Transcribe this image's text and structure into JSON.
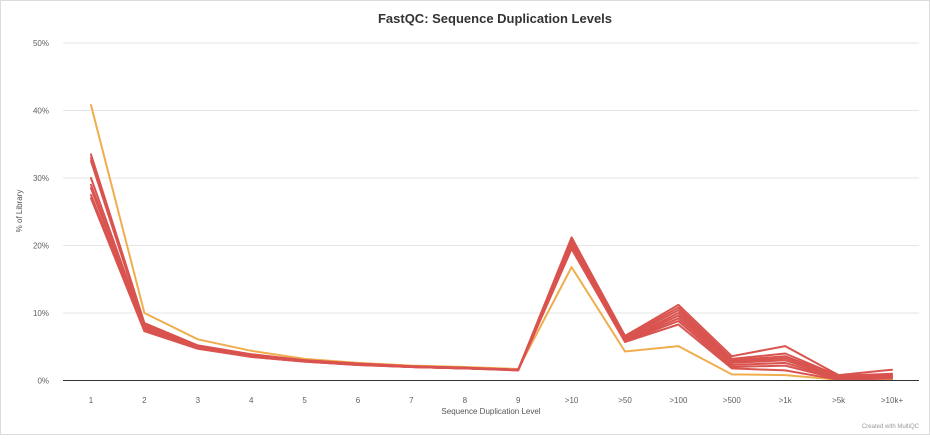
{
  "chart_data": {
    "type": "line",
    "title": "FastQC: Sequence Duplication Levels",
    "xlabel": "Sequence Duplication Level",
    "ylabel": "% of Library",
    "categories": [
      "1",
      "2",
      "3",
      "4",
      "5",
      "6",
      "7",
      "8",
      "9",
      ">10",
      ">50",
      ">100",
      ">500",
      ">1k",
      ">5k",
      ">10k+"
    ],
    "y_ticks": [
      "0%",
      "10%",
      "20%",
      "30%",
      "40%",
      "50%"
    ],
    "ylim": [
      0,
      50
    ],
    "grid": true,
    "legend": "none",
    "colors": {
      "red": "#d9534f",
      "orange": "#f0ad4e"
    },
    "series": [
      {
        "color": "#f0ad4e",
        "values": [
          40.8,
          10.0,
          6.1,
          4.4,
          3.2,
          2.6,
          2.2,
          2.0,
          1.7,
          16.8,
          4.3,
          5.1,
          0.9,
          0.8,
          0.1,
          0.1
        ]
      },
      {
        "color": "#d9534f",
        "values": [
          33.5,
          8.5,
          5.2,
          3.9,
          3.0,
          2.5,
          2.1,
          1.9,
          1.6,
          21.2,
          6.6,
          11.2,
          3.6,
          5.1,
          0.8,
          1.6
        ]
      },
      {
        "color": "#d9534f",
        "values": [
          33.0,
          8.3,
          5.1,
          3.8,
          3.0,
          2.5,
          2.1,
          1.9,
          1.6,
          20.8,
          6.4,
          10.8,
          3.2,
          4.0,
          0.7,
          1.0
        ]
      },
      {
        "color": "#d9534f",
        "values": [
          32.5,
          8.1,
          5.0,
          3.7,
          2.9,
          2.4,
          2.1,
          1.8,
          1.6,
          20.5,
          6.2,
          10.4,
          3.0,
          3.6,
          0.6,
          0.8
        ]
      },
      {
        "color": "#d9534f",
        "values": [
          30.0,
          7.9,
          5.0,
          3.7,
          2.9,
          2.4,
          2.0,
          1.8,
          1.6,
          20.3,
          6.0,
          10.0,
          2.8,
          3.3,
          0.5,
          0.7
        ]
      },
      {
        "color": "#d9534f",
        "values": [
          29.0,
          7.7,
          4.9,
          3.6,
          2.9,
          2.4,
          2.0,
          1.8,
          1.6,
          20.0,
          6.0,
          9.6,
          2.6,
          3.0,
          0.4,
          0.6
        ]
      },
      {
        "color": "#d9534f",
        "values": [
          28.5,
          7.6,
          4.9,
          3.6,
          2.9,
          2.4,
          2.0,
          1.8,
          1.6,
          19.8,
          5.9,
          9.2,
          2.3,
          2.6,
          0.3,
          0.5
        ]
      },
      {
        "color": "#d9534f",
        "values": [
          27.5,
          7.4,
          4.8,
          3.5,
          2.8,
          2.3,
          2.0,
          1.8,
          1.5,
          19.6,
          5.8,
          8.8,
          2.0,
          2.2,
          0.2,
          0.4
        ]
      },
      {
        "color": "#d9534f",
        "values": [
          27.0,
          7.3,
          4.7,
          3.5,
          2.8,
          2.3,
          2.0,
          1.8,
          1.5,
          19.5,
          5.7,
          8.3,
          1.8,
          1.5,
          0.1,
          0.3
        ]
      }
    ]
  },
  "credit": "Created with MultiQC"
}
